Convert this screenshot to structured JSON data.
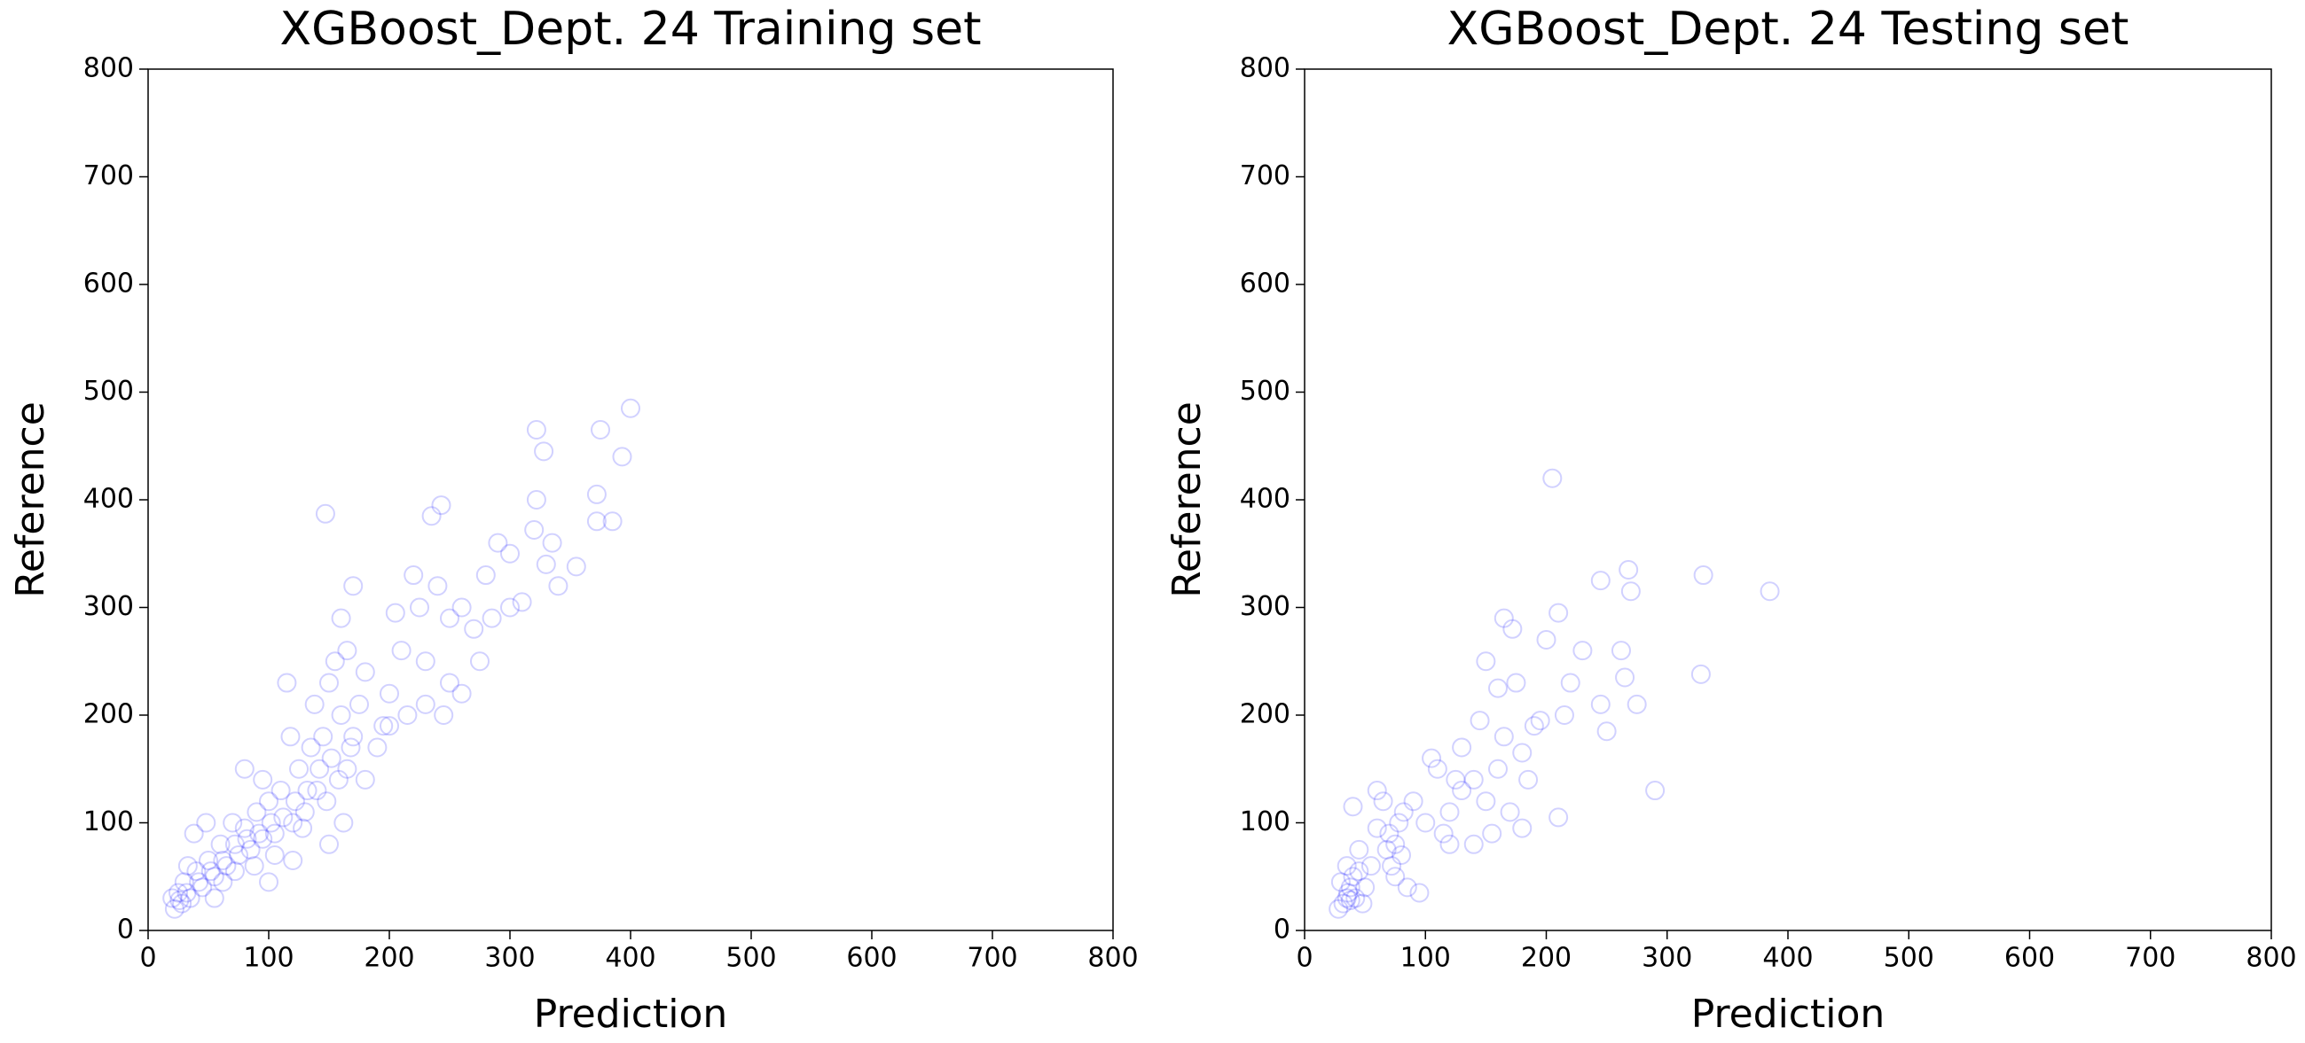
{
  "chart_data": [
    {
      "type": "scatter",
      "title": "XGBoost_Dept. 24 Training set",
      "xlabel": "Prediction",
      "ylabel": "Reference",
      "color": "#0000ff",
      "xlim": [
        0,
        800
      ],
      "ylim": [
        0,
        800
      ],
      "xticks": [
        0,
        100,
        200,
        300,
        400,
        500,
        600,
        700,
        800
      ],
      "yticks": [
        0,
        100,
        200,
        300,
        400,
        500,
        600,
        700,
        800
      ],
      "x": [
        400,
        322,
        375,
        328,
        393,
        372,
        322,
        385,
        372,
        147,
        243,
        235,
        320,
        335,
        355,
        330,
        290,
        300,
        310,
        280,
        260,
        270,
        250,
        240,
        220,
        225,
        205,
        210,
        230,
        250,
        200,
        215,
        195,
        180,
        175,
        170,
        165,
        160,
        155,
        160,
        170,
        150,
        145,
        140,
        135,
        130,
        125,
        120,
        115,
        110,
        105,
        100,
        95,
        90,
        85,
        80,
        75,
        70,
        65,
        60,
        55,
        50,
        45,
        40,
        35,
        30,
        28,
        25,
        22,
        20,
        33,
        38,
        48,
        55,
        62,
        72,
        80,
        88,
        95,
        105,
        118,
        128,
        138,
        148,
        158,
        165,
        168,
        162,
        152,
        142,
        132,
        122,
        112,
        102,
        92,
        82,
        72,
        62,
        52,
        42,
        32,
        26,
        150,
        120,
        100,
        180,
        190,
        200,
        260,
        285,
        245,
        340,
        300,
        275,
        230
      ],
      "y": [
        485,
        465,
        465,
        445,
        440,
        405,
        400,
        380,
        380,
        387,
        395,
        385,
        372,
        360,
        338,
        340,
        360,
        350,
        305,
        330,
        300,
        280,
        290,
        320,
        330,
        300,
        295,
        260,
        250,
        230,
        220,
        200,
        190,
        240,
        210,
        180,
        150,
        200,
        250,
        290,
        320,
        230,
        180,
        130,
        170,
        110,
        150,
        100,
        230,
        130,
        90,
        120,
        85,
        110,
        75,
        95,
        70,
        100,
        60,
        80,
        50,
        65,
        40,
        55,
        30,
        45,
        25,
        35,
        20,
        30,
        60,
        90,
        100,
        30,
        45,
        55,
        150,
        60,
        140,
        70,
        180,
        95,
        210,
        120,
        140,
        260,
        170,
        100,
        160,
        150,
        130,
        120,
        105,
        100,
        90,
        85,
        80,
        65,
        55,
        45,
        35,
        28,
        80,
        65,
        45,
        140,
        170,
        190,
        220,
        290,
        200,
        320,
        300,
        250,
        210
      ]
    },
    {
      "type": "scatter",
      "title": "XGBoost_Dept. 24 Testing set",
      "xlabel": "Prediction",
      "ylabel": "Reference",
      "color": "#0000ff",
      "xlim": [
        0,
        800
      ],
      "ylim": [
        0,
        800
      ],
      "xticks": [
        0,
        100,
        200,
        300,
        400,
        500,
        600,
        700,
        800
      ],
      "yticks": [
        0,
        100,
        200,
        300,
        400,
        500,
        600,
        700,
        800
      ],
      "x": [
        205,
        268,
        330,
        385,
        270,
        245,
        210,
        165,
        172,
        200,
        230,
        262,
        265,
        328,
        220,
        160,
        150,
        195,
        215,
        245,
        250,
        275,
        290,
        210,
        180,
        160,
        140,
        130,
        120,
        110,
        100,
        90,
        105,
        150,
        165,
        170,
        75,
        78,
        72,
        80,
        70,
        75,
        68,
        82,
        85,
        95,
        60,
        55,
        50,
        45,
        40,
        35,
        38,
        32,
        40,
        36,
        42,
        30,
        28,
        45,
        35,
        38,
        48,
        65,
        60,
        120,
        130,
        140,
        155,
        185,
        190,
        175,
        145,
        125,
        115,
        180
      ],
      "y": [
        420,
        335,
        330,
        315,
        315,
        325,
        295,
        290,
        280,
        270,
        260,
        260,
        235,
        238,
        230,
        225,
        250,
        195,
        200,
        210,
        185,
        210,
        130,
        105,
        95,
        150,
        140,
        170,
        110,
        150,
        100,
        120,
        160,
        120,
        180,
        110,
        80,
        100,
        60,
        70,
        90,
        50,
        75,
        110,
        40,
        35,
        95,
        60,
        40,
        75,
        115,
        30,
        40,
        25,
        50,
        35,
        30,
        45,
        20,
        55,
        60,
        28,
        25,
        120,
        130,
        80,
        130,
        80,
        90,
        140,
        190,
        230,
        195,
        140,
        90,
        165
      ]
    }
  ]
}
